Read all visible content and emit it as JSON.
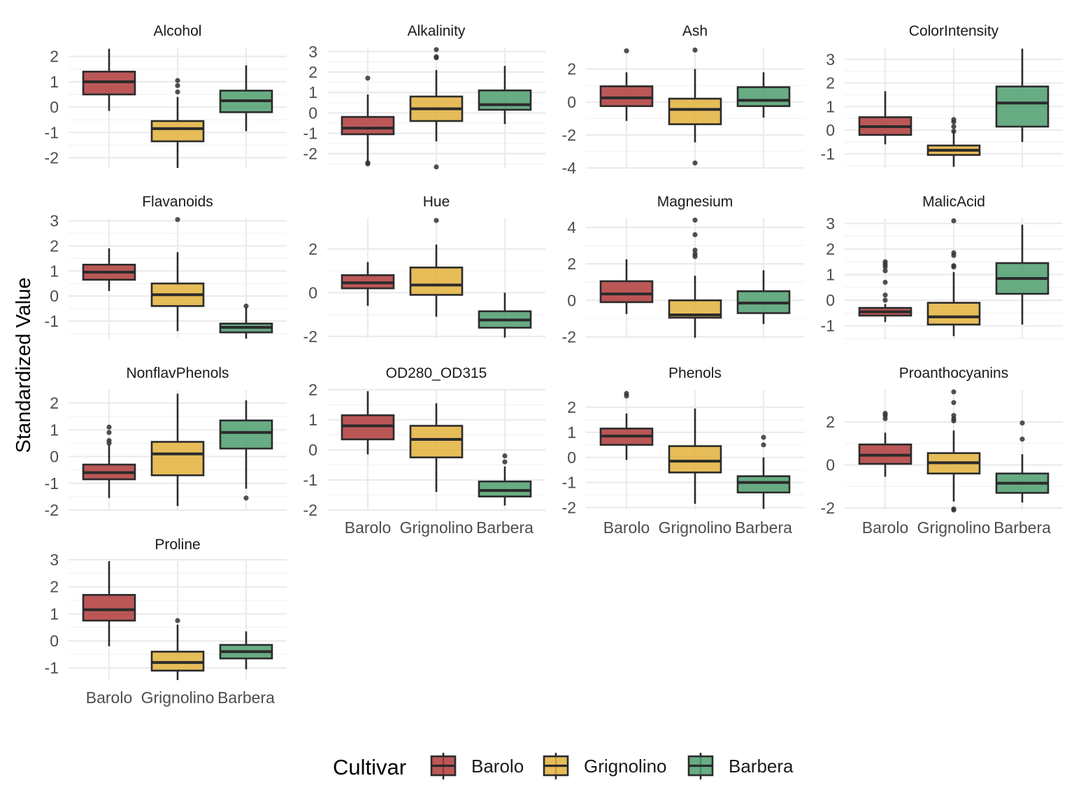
{
  "chart_data": {
    "type": "boxplot",
    "ylabel": "Standardized Value",
    "categories": [
      "Barolo",
      "Grignolino",
      "Barbera"
    ],
    "legend": {
      "title": "Cultivar",
      "position": "bottom",
      "entries": [
        {
          "label": "Barolo",
          "color": "#b03a3a"
        },
        {
          "label": "Grignolino",
          "color": "#e3b23c"
        },
        {
          "label": "Barbera",
          "color": "#4e9e6e"
        }
      ]
    },
    "facets": [
      {
        "title": "Alcohol",
        "ylim": [
          -2.4,
          2.35
        ],
        "ticks": [
          -2,
          -1,
          0,
          1,
          2
        ],
        "boxes": [
          {
            "min": -0.15,
            "q1": 0.5,
            "median": 1.0,
            "q3": 1.4,
            "max": 2.3,
            "outliers": []
          },
          {
            "min": -2.4,
            "q1": -1.35,
            "median": -0.85,
            "q3": -0.55,
            "max": 0.4,
            "outliers": [
              0.6,
              0.85,
              1.05
            ]
          },
          {
            "min": -0.95,
            "q1": -0.2,
            "median": 0.25,
            "q3": 0.65,
            "max": 1.65,
            "outliers": []
          }
        ]
      },
      {
        "title": "Alkalinity",
        "ylim": [
          -2.7,
          3.2
        ],
        "ticks": [
          -2,
          -1,
          0,
          1,
          2,
          3
        ],
        "boxes": [
          {
            "min": -2.4,
            "q1": -1.05,
            "median": -0.75,
            "q3": -0.2,
            "max": 0.9,
            "outliers": [
              1.7,
              -2.45,
              -2.5
            ]
          },
          {
            "min": -1.4,
            "q1": -0.4,
            "median": 0.2,
            "q3": 0.8,
            "max": 2.1,
            "outliers": [
              2.7,
              2.75,
              3.1,
              -2.65
            ]
          },
          {
            "min": -0.55,
            "q1": 0.15,
            "median": 0.4,
            "q3": 1.1,
            "max": 2.3,
            "outliers": []
          }
        ]
      },
      {
        "title": "Ash",
        "ylim": [
          -4.0,
          3.3
        ],
        "ticks": [
          -4,
          -2,
          0,
          2
        ],
        "boxes": [
          {
            "min": -1.15,
            "q1": -0.25,
            "median": 0.25,
            "q3": 0.95,
            "max": 1.8,
            "outliers": [
              3.1
            ]
          },
          {
            "min": -2.45,
            "q1": -1.35,
            "median": -0.45,
            "q3": 0.2,
            "max": 2.0,
            "outliers": [
              3.15,
              -3.7
            ]
          },
          {
            "min": -0.95,
            "q1": -0.25,
            "median": 0.1,
            "q3": 0.9,
            "max": 1.8,
            "outliers": []
          }
        ]
      },
      {
        "title": "ColorIntensity",
        "ylim": [
          -1.6,
          3.5
        ],
        "ticks": [
          -1,
          0,
          1,
          2,
          3
        ],
        "boxes": [
          {
            "min": -0.6,
            "q1": -0.2,
            "median": 0.15,
            "q3": 0.55,
            "max": 1.65,
            "outliers": []
          },
          {
            "min": -1.55,
            "q1": -1.05,
            "median": -0.85,
            "q3": -0.65,
            "max": 0.0,
            "outliers": [
              0.15,
              0.35,
              0.45,
              -0.05
            ]
          },
          {
            "min": -0.5,
            "q1": 0.15,
            "median": 1.15,
            "q3": 1.85,
            "max": 3.45,
            "outliers": []
          }
        ]
      },
      {
        "title": "Flavanoids",
        "ylim": [
          -1.7,
          3.1
        ],
        "ticks": [
          -1,
          0,
          1,
          2,
          3
        ],
        "boxes": [
          {
            "min": 0.2,
            "q1": 0.65,
            "median": 0.95,
            "q3": 1.25,
            "max": 1.9,
            "outliers": []
          },
          {
            "min": -1.4,
            "q1": -0.4,
            "median": 0.05,
            "q3": 0.5,
            "max": 1.75,
            "outliers": [
              3.05
            ]
          },
          {
            "min": -1.7,
            "q1": -1.45,
            "median": -1.25,
            "q3": -1.1,
            "max": -0.45,
            "outliers": [
              -0.4
            ]
          }
        ]
      },
      {
        "title": "Hue",
        "ylim": [
          -2.1,
          3.4
        ],
        "ticks": [
          -2,
          0,
          2
        ],
        "boxes": [
          {
            "min": -0.6,
            "q1": 0.2,
            "median": 0.45,
            "q3": 0.8,
            "max": 1.4,
            "outliers": []
          },
          {
            "min": -1.1,
            "q1": -0.1,
            "median": 0.35,
            "q3": 1.15,
            "max": 2.2,
            "outliers": [
              3.3
            ]
          },
          {
            "min": -2.05,
            "q1": -1.6,
            "median": -1.25,
            "q3": -0.85,
            "max": 0.0,
            "outliers": []
          }
        ]
      },
      {
        "title": "Magnesium",
        "ylim": [
          -2.1,
          4.5
        ],
        "ticks": [
          -2,
          0,
          2,
          4
        ],
        "boxes": [
          {
            "min": -0.75,
            "q1": -0.1,
            "median": 0.35,
            "q3": 1.05,
            "max": 2.25,
            "outliers": []
          },
          {
            "min": -2.05,
            "q1": -0.95,
            "median": -0.8,
            "q3": 0.0,
            "max": 1.35,
            "outliers": [
              2.4,
              2.55,
              2.75,
              3.6,
              4.4
            ]
          },
          {
            "min": -1.3,
            "q1": -0.7,
            "median": -0.15,
            "q3": 0.5,
            "max": 1.65,
            "outliers": []
          }
        ]
      },
      {
        "title": "MalicAcid",
        "ylim": [
          -1.5,
          3.2
        ],
        "ticks": [
          -1,
          0,
          1,
          2,
          3
        ],
        "boxes": [
          {
            "min": -0.85,
            "q1": -0.6,
            "median": -0.45,
            "q3": -0.3,
            "max": -0.15,
            "outliers": [
              0.0,
              0.2,
              0.7,
              1.15,
              1.3,
              1.4,
              1.5
            ]
          },
          {
            "min": -1.4,
            "q1": -0.95,
            "median": -0.65,
            "q3": -0.1,
            "max": 1.1,
            "outliers": [
              1.3,
              1.35,
              1.75,
              1.85,
              3.1
            ]
          },
          {
            "min": -0.95,
            "q1": 0.25,
            "median": 0.85,
            "q3": 1.45,
            "max": 2.95,
            "outliers": []
          }
        ]
      },
      {
        "title": "NonflavPhenols",
        "ylim": [
          -2.0,
          2.5
        ],
        "ticks": [
          -2,
          -1,
          0,
          1,
          2
        ],
        "boxes": [
          {
            "min": -1.55,
            "q1": -0.85,
            "median": -0.6,
            "q3": -0.3,
            "max": 0.45,
            "outliers": [
              0.5,
              0.6,
              0.9,
              1.1
            ]
          },
          {
            "min": -1.85,
            "q1": -0.7,
            "median": 0.1,
            "q3": 0.55,
            "max": 2.35,
            "outliers": []
          },
          {
            "min": -1.2,
            "q1": 0.3,
            "median": 0.9,
            "q3": 1.35,
            "max": 2.1,
            "outliers": [
              -1.55
            ]
          }
        ]
      },
      {
        "title": "OD280_OD315",
        "ylim": [
          -2.0,
          2.0
        ],
        "ticks": [
          -2,
          -1,
          0,
          1,
          2
        ],
        "boxes": [
          {
            "min": -0.15,
            "q1": 0.35,
            "median": 0.8,
            "q3": 1.15,
            "max": 1.95,
            "outliers": []
          },
          {
            "min": -1.4,
            "q1": -0.25,
            "median": 0.35,
            "q3": 0.8,
            "max": 1.55,
            "outliers": []
          },
          {
            "min": -1.85,
            "q1": -1.55,
            "median": -1.35,
            "q3": -1.05,
            "max": -0.55,
            "outliers": [
              -0.4,
              -0.2
            ]
          }
        ]
      },
      {
        "title": "Phenols",
        "ylim": [
          -2.1,
          2.7
        ],
        "ticks": [
          -2,
          -1,
          0,
          1,
          2
        ],
        "boxes": [
          {
            "min": -0.1,
            "q1": 0.5,
            "median": 0.85,
            "q3": 1.15,
            "max": 1.75,
            "outliers": [
              2.45,
              2.55
            ]
          },
          {
            "min": -1.85,
            "q1": -0.6,
            "median": -0.15,
            "q3": 0.45,
            "max": 1.95,
            "outliers": []
          },
          {
            "min": -2.05,
            "q1": -1.4,
            "median": -1.0,
            "q3": -0.75,
            "max": 0.0,
            "outliers": [
              0.5,
              0.8
            ]
          }
        ]
      },
      {
        "title": "Proanthocyanins",
        "ylim": [
          -2.1,
          3.5
        ],
        "ticks": [
          -2,
          0,
          2
        ],
        "boxes": [
          {
            "min": -0.55,
            "q1": 0.05,
            "median": 0.45,
            "q3": 0.95,
            "max": 1.5,
            "outliers": [
              2.15,
              2.3,
              2.4
            ]
          },
          {
            "min": -1.7,
            "q1": -0.4,
            "median": 0.1,
            "q3": 0.55,
            "max": 1.6,
            "outliers": [
              2.05,
              2.15,
              2.3,
              2.9,
              3.4,
              -2.05,
              -2.1
            ]
          },
          {
            "min": -1.75,
            "q1": -1.3,
            "median": -0.85,
            "q3": -0.4,
            "max": 0.5,
            "outliers": [
              1.2,
              1.95
            ]
          }
        ]
      },
      {
        "title": "Proline",
        "ylim": [
          -1.45,
          2.95
        ],
        "ticks": [
          -1,
          0,
          1,
          2,
          3
        ],
        "boxes": [
          {
            "min": -0.2,
            "q1": 0.75,
            "median": 1.15,
            "q3": 1.7,
            "max": 2.95,
            "outliers": []
          },
          {
            "min": -1.45,
            "q1": -1.1,
            "median": -0.8,
            "q3": -0.4,
            "max": 0.6,
            "outliers": [
              0.75
            ]
          },
          {
            "min": -1.05,
            "q1": -0.65,
            "median": -0.4,
            "q3": -0.15,
            "max": 0.35,
            "outliers": []
          }
        ]
      }
    ]
  }
}
